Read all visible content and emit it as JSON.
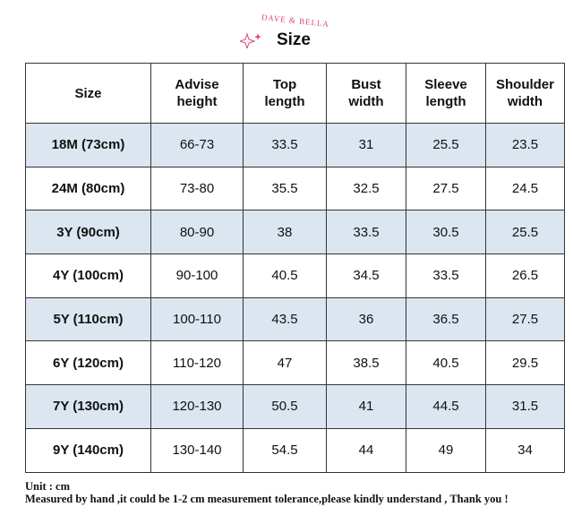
{
  "header": {
    "brand": "DAVE & BELLA",
    "title": "Size"
  },
  "table": {
    "columns": [
      "Size",
      "Advise\nheight",
      "Top\nlength",
      "Bust\nwidth",
      "Sleeve\nlength",
      "Shoulder\nwidth"
    ],
    "rows": [
      [
        "18M (73cm)",
        "66-73",
        "33.5",
        "31",
        "25.5",
        "23.5"
      ],
      [
        "24M (80cm)",
        "73-80",
        "35.5",
        "32.5",
        "27.5",
        "24.5"
      ],
      [
        "3Y (90cm)",
        "80-90",
        "38",
        "33.5",
        "30.5",
        "25.5"
      ],
      [
        "4Y (100cm)",
        "90-100",
        "40.5",
        "34.5",
        "33.5",
        "26.5"
      ],
      [
        "5Y (110cm)",
        "100-110",
        "43.5",
        "36",
        "36.5",
        "27.5"
      ],
      [
        "6Y (120cm)",
        "110-120",
        "47",
        "38.5",
        "40.5",
        "29.5"
      ],
      [
        "7Y (130cm)",
        "120-130",
        "50.5",
        "41",
        "44.5",
        "31.5"
      ],
      [
        "9Y (140cm)",
        "130-140",
        "54.5",
        "44",
        "49",
        "34"
      ]
    ]
  },
  "footer": {
    "unit": "Unit : cm",
    "note": "Measured by hand ,it could be 1-2 cm measurement tolerance,please kindly understand , Thank you !"
  }
}
